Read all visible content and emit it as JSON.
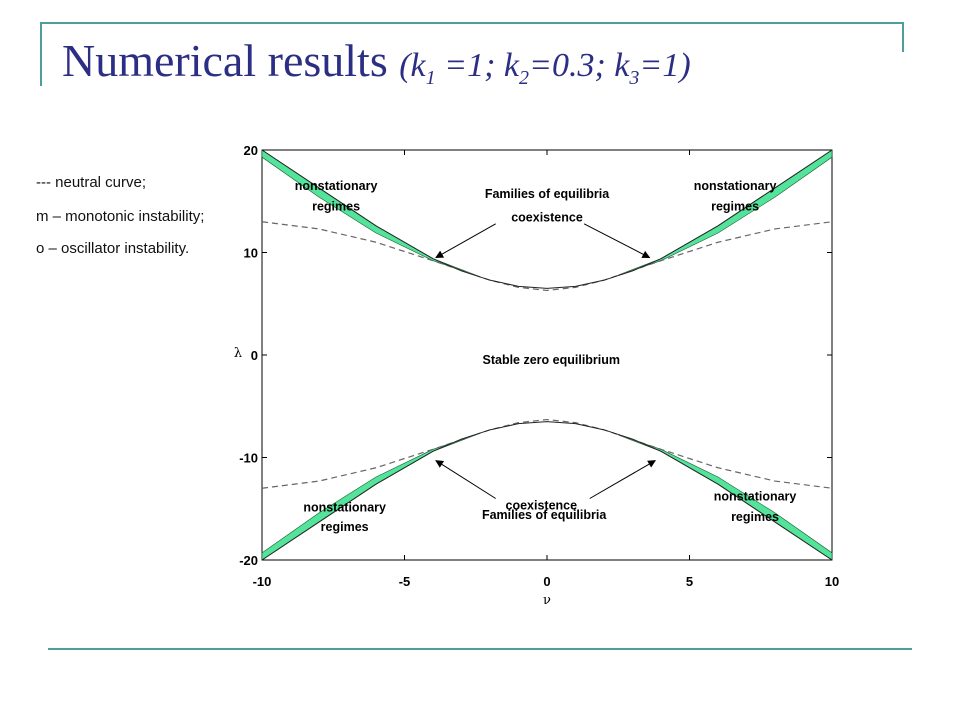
{
  "slide": {
    "title": "Numerical results",
    "params": {
      "open": "(k",
      "s1": "1",
      "p1": " =1; k",
      "s2": "2",
      "p2": "=0.3; k",
      "s3": "3",
      "p3": "=1)"
    },
    "legend": [
      "---    neutral curve;",
      "m – monotonic instability;",
      "o – oscillator instability."
    ]
  },
  "colors": {
    "title": "#2b2e83",
    "accent_line": "#4f9c9a",
    "band_fill": "#54e39a"
  },
  "chart_data": {
    "type": "line",
    "xlabel": "ν",
    "ylabel": "λ",
    "xlim": [
      -10,
      10
    ],
    "ylim": [
      -20,
      20
    ],
    "xticks": [
      "-10",
      "-5",
      "0",
      "5",
      "10"
    ],
    "yticks": [
      "20",
      "10",
      "0",
      "-10",
      "-20"
    ],
    "grid": false,
    "series": [
      {
        "style": "dashed",
        "x": [
          -10,
          -8,
          -6,
          -4,
          -2,
          -1,
          0,
          1,
          2,
          4,
          6,
          8,
          10
        ],
        "y": [
          13,
          12.3,
          11,
          9.2,
          7.3,
          6.6,
          6.3,
          6.6,
          7.3,
          9.2,
          11,
          12.3,
          13
        ]
      },
      {
        "style": "dashed",
        "x": [
          -10,
          -8,
          -6,
          -4,
          -2,
          -1,
          0,
          1,
          2,
          4,
          6,
          8,
          10
        ],
        "y": [
          -13,
          -12.3,
          -11,
          -9.2,
          -7.3,
          -6.6,
          -6.3,
          -6.6,
          -7.3,
          -9.2,
          -11,
          -12.3,
          -13
        ]
      },
      {
        "style": "solid",
        "x": [
          -10,
          -8,
          -6,
          -4,
          -3,
          -2,
          -1,
          0,
          1,
          2,
          3,
          4,
          6,
          8,
          10
        ],
        "y": [
          20,
          16.3,
          12.6,
          9.4,
          8.2,
          7.3,
          6.7,
          6.5,
          6.7,
          7.3,
          8.2,
          9.4,
          12.6,
          16.3,
          20
        ]
      },
      {
        "style": "solid",
        "x": [
          -10,
          -8,
          -6,
          -4,
          -3,
          -2,
          -1,
          0,
          1,
          2,
          3,
          4,
          6,
          8,
          10
        ],
        "y": [
          -20,
          -16.3,
          -12.6,
          -9.4,
          -8.2,
          -7.3,
          -6.7,
          -6.5,
          -6.7,
          -7.3,
          -8.2,
          -9.4,
          -12.6,
          -16.3,
          -20
        ]
      }
    ],
    "bands": [
      {
        "x": [
          -10,
          -8,
          -6,
          -4,
          -2.5
        ],
        "upper": [
          20,
          16.3,
          12.6,
          9.4,
          7.8
        ],
        "lower": [
          19.3,
          15.4,
          11.9,
          9.2,
          7.8
        ]
      },
      {
        "x": [
          2.5,
          4,
          6,
          8,
          10
        ],
        "upper": [
          7.8,
          9.4,
          12.6,
          16.3,
          20
        ],
        "lower": [
          7.8,
          9.2,
          11.9,
          15.4,
          19.3
        ]
      },
      {
        "x": [
          -10,
          -8,
          -6,
          -4,
          -2.5
        ],
        "upper": [
          -19.3,
          -15.4,
          -11.9,
          -9.2,
          -7.8
        ],
        "lower": [
          -20,
          -16.3,
          -12.6,
          -9.4,
          -7.8
        ]
      },
      {
        "x": [
          2.5,
          4,
          6,
          8,
          10
        ],
        "upper": [
          -7.8,
          -9.2,
          -11.9,
          -15.4,
          -19.3
        ],
        "lower": [
          -7.8,
          -9.4,
          -12.6,
          -16.3,
          -20
        ]
      }
    ],
    "annotations": [
      {
        "text": "nonstationary",
        "x": -7.4,
        "y": 16.5
      },
      {
        "text": "regimes",
        "x": -7.4,
        "y": 14.5
      },
      {
        "text": "Families of equilibria",
        "x": 0,
        "y": 15.7
      },
      {
        "text": "coexistence",
        "x": 0,
        "y": 13.4
      },
      {
        "text": "nonstationary",
        "x": 6.6,
        "y": 16.5
      },
      {
        "text": "regimes",
        "x": 6.6,
        "y": 14.5
      },
      {
        "text": "Stable zero equilibrium",
        "x": 0.15,
        "y": -0.5
      },
      {
        "text": "nonstationary",
        "x": -7.1,
        "y": -14.9
      },
      {
        "text": "regimes",
        "x": -7.1,
        "y": -16.8
      },
      {
        "text": "coexistence",
        "x": -0.2,
        "y": -14.7
      },
      {
        "text": "Families of equilibria",
        "x": -0.1,
        "y": -15.6
      },
      {
        "text": "nonstationary",
        "x": 7.3,
        "y": -13.8
      },
      {
        "text": "regimes",
        "x": 7.3,
        "y": -15.8
      }
    ],
    "arrows": [
      {
        "from": [
          -1.8,
          12.8
        ],
        "to": [
          -3.9,
          9.5
        ]
      },
      {
        "from": [
          1.3,
          12.8
        ],
        "to": [
          3.6,
          9.5
        ]
      },
      {
        "from": [
          -1.8,
          -14
        ],
        "to": [
          -3.9,
          -10.3
        ]
      },
      {
        "from": [
          1.5,
          -14
        ],
        "to": [
          3.8,
          -10.3
        ]
      }
    ]
  }
}
